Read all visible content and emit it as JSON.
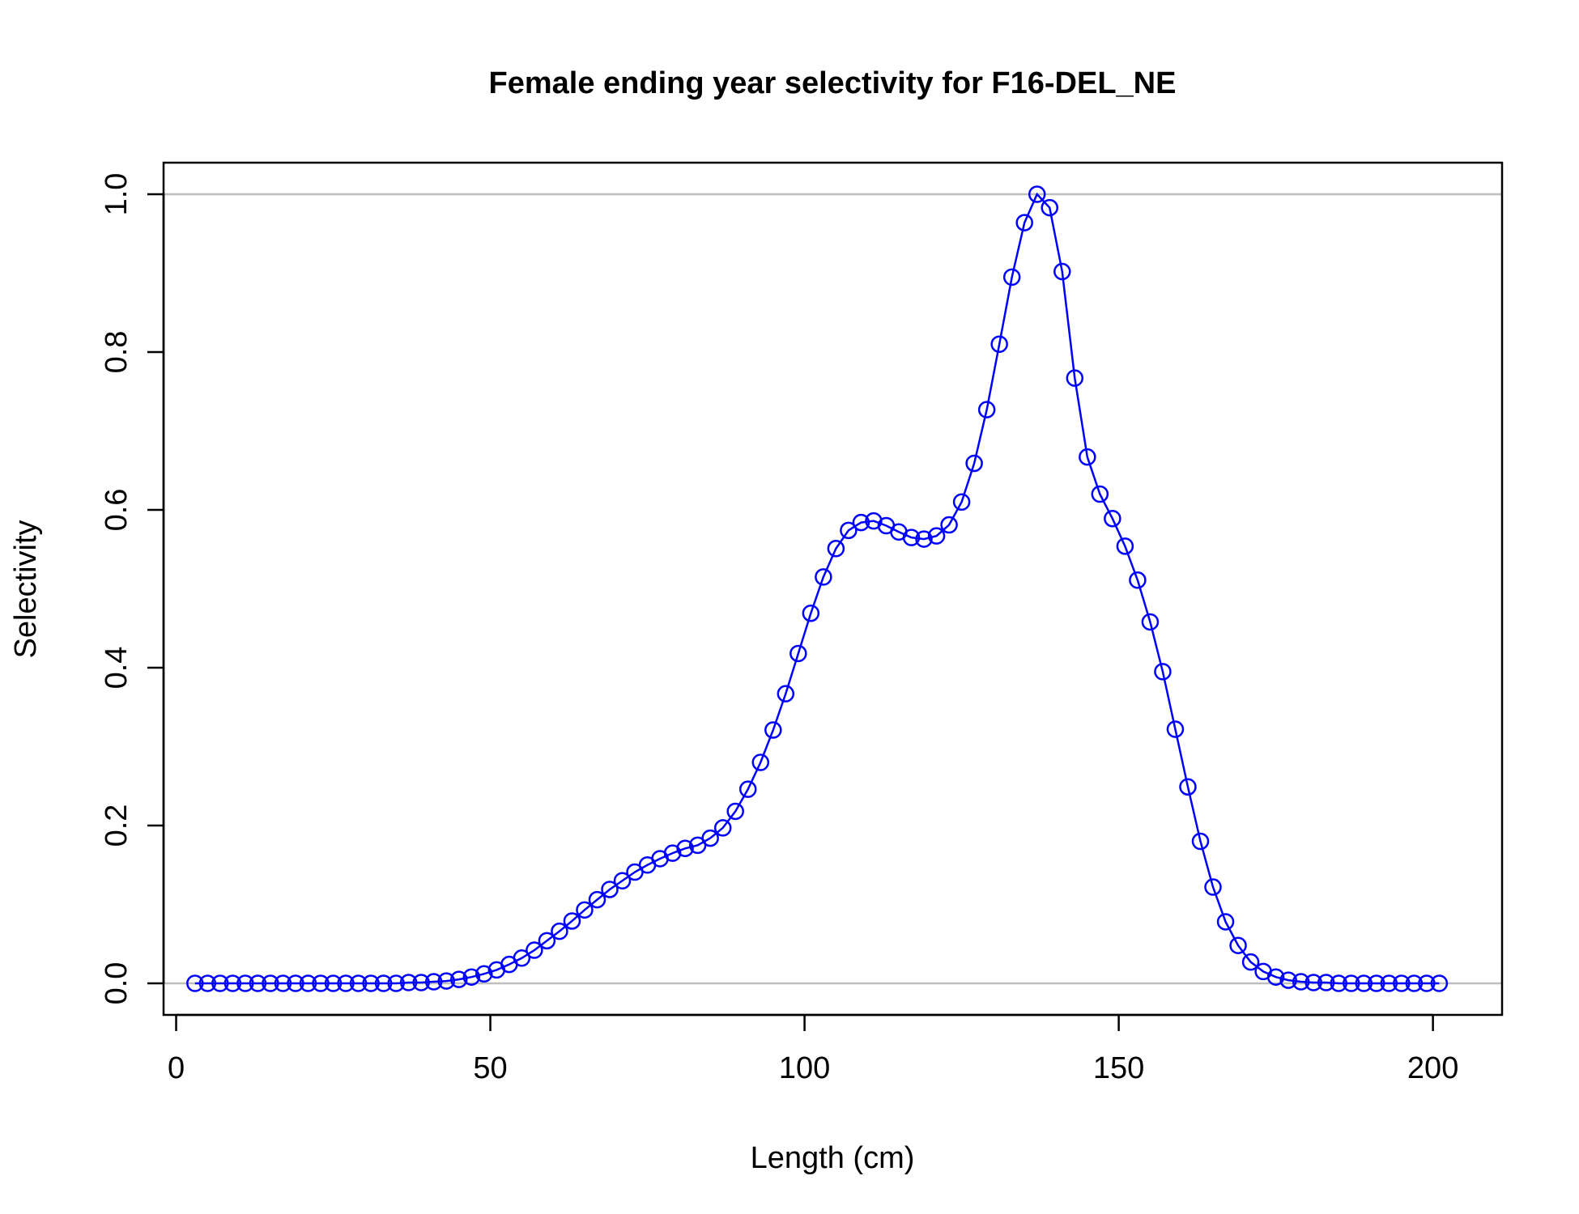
{
  "chart_data": {
    "type": "line",
    "title": "Female ending year selectivity for F16-DEL_NE",
    "xlabel": "Length (cm)",
    "ylabel": "Selectivity",
    "xlim": [
      -2,
      211
    ],
    "ylim": [
      -0.04,
      1.04
    ],
    "x_ticks": [
      0,
      50,
      100,
      150,
      200
    ],
    "x_tick_labels": [
      "0",
      "50",
      "100",
      "150",
      "200"
    ],
    "y_ticks": [
      0,
      0.2,
      0.4,
      0.6,
      0.8,
      1.0
    ],
    "y_tick_labels": [
      "0.0",
      "0.2",
      "0.4",
      "0.6",
      "0.8",
      "1.0"
    ],
    "reference_lines": [
      0,
      1
    ],
    "reference_line_color": "#bebebe",
    "series_color": "#0000ff",
    "marker": "open-circle",
    "grid": false,
    "series": [
      {
        "x": [
          3,
          5,
          7,
          9,
          11,
          13,
          15,
          17,
          19,
          21,
          23,
          25,
          27,
          29,
          31,
          33,
          35,
          37,
          39,
          41,
          43,
          45,
          47,
          49,
          51,
          53,
          55,
          57,
          59,
          61,
          63,
          65,
          67,
          69,
          71,
          73,
          75,
          77,
          79,
          81,
          83,
          85,
          87,
          89,
          91,
          93,
          95,
          97,
          99,
          101,
          103,
          105,
          107,
          109,
          111,
          113,
          115,
          117,
          119,
          121,
          123,
          125,
          127,
          129,
          131,
          133,
          135,
          137,
          139,
          141,
          143,
          145,
          147,
          149,
          151,
          153,
          155,
          157,
          159,
          161,
          163,
          165,
          167,
          169,
          171,
          173,
          175,
          177,
          179,
          181,
          183,
          185,
          187,
          189,
          191,
          193,
          195,
          197,
          199,
          201
        ],
        "values": [
          0,
          0,
          0,
          0,
          0,
          0,
          0,
          0,
          0,
          0,
          0,
          0,
          0,
          0,
          0,
          0,
          0,
          0.001,
          0.001,
          0.002,
          0.003,
          0.005,
          0.008,
          0.012,
          0.017,
          0.024,
          0.032,
          0.042,
          0.054,
          0.066,
          0.079,
          0.093,
          0.106,
          0.119,
          0.13,
          0.141,
          0.15,
          0.158,
          0.165,
          0.171,
          0.175,
          0.184,
          0.197,
          0.218,
          0.246,
          0.28,
          0.321,
          0.367,
          0.418,
          0.469,
          0.515,
          0.551,
          0.574,
          0.584,
          0.586,
          0.58,
          0.572,
          0.565,
          0.563,
          0.567,
          0.581,
          0.61,
          0.659,
          0.727,
          0.81,
          0.895,
          0.964,
          1.0,
          0.983,
          0.902,
          0.767,
          0.667,
          0.62,
          0.589,
          0.554,
          0.511,
          0.458,
          0.395,
          0.322,
          0.249,
          0.18,
          0.122,
          0.078,
          0.048,
          0.027,
          0.015,
          0.008,
          0.004,
          0.002,
          0.001,
          0.001,
          0,
          0,
          0,
          0,
          0,
          0,
          0,
          0,
          0
        ]
      }
    ]
  }
}
